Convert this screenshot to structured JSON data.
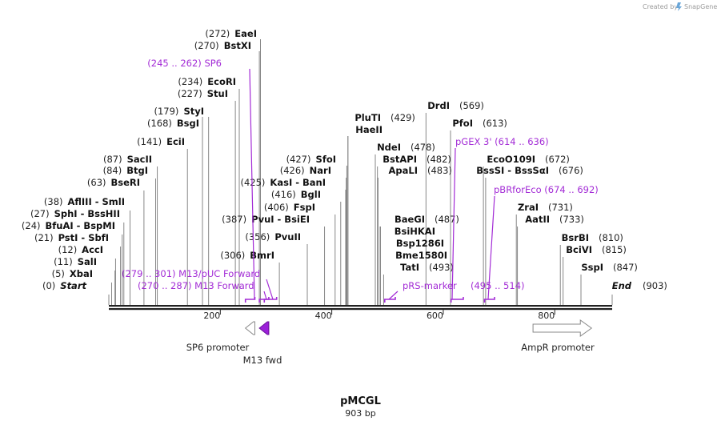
{
  "credit": {
    "created_by": "Created by",
    "brand": "SnapGene"
  },
  "title": "pMCGL",
  "length_label": "903 bp",
  "colors": {
    "primer": "#a32cd6",
    "feature_fill": "#9b20d8",
    "line": "#777777",
    "backbone": "#222222"
  },
  "sites": [
    {
      "name": "Start",
      "pos": "(0)",
      "x": 0,
      "italic": true
    },
    {
      "name": "XbaI",
      "pos": "(5)",
      "x": 5
    },
    {
      "name": "SalI",
      "pos": "(11)",
      "x": 11
    },
    {
      "name": "AccI",
      "pos": "(12)",
      "x": 12
    },
    {
      "name": "PstI - SbfI",
      "pos": "(21)",
      "x": 21
    },
    {
      "name": "BfuAI - BspMI",
      "pos": "(24)",
      "x": 24
    },
    {
      "name": "SphI - BssHII",
      "pos": "(27)",
      "x": 27
    },
    {
      "name": "AflIII - SmlI",
      "pos": "(38)",
      "x": 38
    },
    {
      "name": "BseRI",
      "pos": "(63)",
      "x": 63
    },
    {
      "name": "BtgI",
      "pos": "(84)",
      "x": 84
    },
    {
      "name": "SacII",
      "pos": "(87)",
      "x": 87
    },
    {
      "name": "EciI",
      "pos": "(141)",
      "x": 141
    },
    {
      "name": "BsgI",
      "pos": "(168)",
      "x": 168
    },
    {
      "name": "StyI",
      "pos": "(179)",
      "x": 179
    },
    {
      "name": "StuI",
      "pos": "(227)",
      "x": 227
    },
    {
      "name": "EcoRI",
      "pos": "(234)",
      "x": 234
    },
    {
      "name": "BstXI",
      "pos": "(270)",
      "x": 270
    },
    {
      "name": "EaeI",
      "pos": "(272)",
      "x": 272
    },
    {
      "name": "BmrI",
      "pos": "(306)",
      "x": 306
    },
    {
      "name": "PvuII",
      "pos": "(356)",
      "x": 356
    },
    {
      "name": "PvuI - BsiEI",
      "pos": "(387)",
      "x": 387
    },
    {
      "name": "FspI",
      "pos": "(406)",
      "x": 406
    },
    {
      "name": "BglI",
      "pos": "(416)",
      "x": 416
    },
    {
      "name": "KasI - BanI",
      "pos": "(425)",
      "x": 425
    },
    {
      "name": "NarI",
      "pos": "(426)",
      "x": 426
    },
    {
      "name": "SfoI",
      "pos": "(427)",
      "x": 427
    },
    {
      "name": "PluTI",
      "pos": "(429)",
      "x": 429
    },
    {
      "name": "HaeII",
      "pos": "",
      "x": 429
    },
    {
      "name": "NdeI",
      "pos": "(478)",
      "x": 478
    },
    {
      "name": "BstAPI",
      "pos": "(482)",
      "x": 482
    },
    {
      "name": "ApaLI",
      "pos": "(483)",
      "x": 483
    },
    {
      "name": "BaeGI",
      "pos": "(487)",
      "x": 487
    },
    {
      "name": "BsiHKAI",
      "pos": "",
      "x": 487
    },
    {
      "name": "Bsp1286I",
      "pos": "",
      "x": 487
    },
    {
      "name": "Bme1580I",
      "pos": "",
      "x": 487
    },
    {
      "name": "TatI",
      "pos": "(493)",
      "x": 493
    },
    {
      "name": "DrdI",
      "pos": "(569)",
      "x": 569
    },
    {
      "name": "PfoI",
      "pos": "(613)",
      "x": 613
    },
    {
      "name": "EcoO109I",
      "pos": "(672)",
      "x": 672
    },
    {
      "name": "BssSI - BssSαI",
      "pos": "(676)",
      "x": 676
    },
    {
      "name": "ZraI",
      "pos": "(731)",
      "x": 731
    },
    {
      "name": "AatII",
      "pos": "(733)",
      "x": 733
    },
    {
      "name": "BsrBI",
      "pos": "(810)",
      "x": 810
    },
    {
      "name": "BciVI",
      "pos": "(815)",
      "x": 815
    },
    {
      "name": "SspI",
      "pos": "(847)",
      "x": 847
    },
    {
      "name": "End",
      "pos": "(903)",
      "x": 903,
      "italic": true
    }
  ],
  "primers": [
    {
      "name": "SP6",
      "range": "(245 .. 262)",
      "start": 245,
      "end": 262
    },
    {
      "name": "M13/pUC Forward",
      "range": "(279 .. 301)",
      "start": 279,
      "end": 301
    },
    {
      "name": "M13 Forward",
      "range": "(270 .. 287)",
      "start": 270,
      "end": 287
    },
    {
      "name": "pRS-marker",
      "range": "",
      "start": 495,
      "end": 514
    },
    {
      "name": "",
      "range": "(495 .. 514)",
      "start": 495,
      "end": 514
    },
    {
      "name": "pGEX 3'",
      "range": "(614 .. 636)",
      "start": 614,
      "end": 636
    },
    {
      "name": "pBRforEco",
      "range": "(674 .. 692)",
      "start": 674,
      "end": 692
    }
  ],
  "features": [
    {
      "name": "SP6 promoter",
      "start": 245,
      "end": 262,
      "direction": "left",
      "filled": false
    },
    {
      "name": "M13 fwd",
      "start": 270,
      "end": 287,
      "direction": "left",
      "filled": true
    },
    {
      "name": "AmpR promoter",
      "start": 761,
      "end": 866,
      "direction": "right",
      "filled": false
    }
  ],
  "axis": {
    "ticks": [
      200,
      400,
      600,
      800
    ]
  }
}
